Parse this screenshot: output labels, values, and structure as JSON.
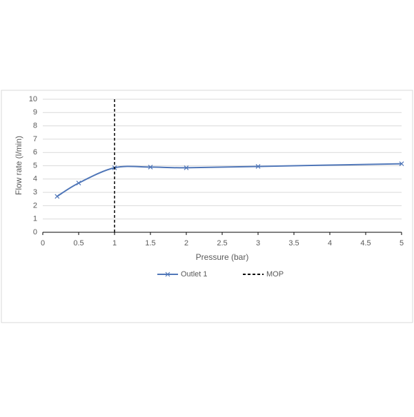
{
  "chart_data": {
    "type": "line",
    "x_label": "Pressure (bar)",
    "y_label": "Flow rate (l/min)",
    "series": [
      {
        "name": "Outlet 1",
        "color": "#4f76b8",
        "x": [
          0.2,
          0.5,
          1,
          1.5,
          2,
          3,
          5
        ],
        "values": [
          2.7,
          3.7,
          4.85,
          4.9,
          4.85,
          4.95,
          5.15
        ],
        "marker": "x",
        "smooth": true
      },
      {
        "name": "MOP",
        "color": "#000000",
        "x": [
          1,
          1
        ],
        "values": [
          0,
          10
        ],
        "dashed": true
      }
    ],
    "xlim": [
      0,
      5
    ],
    "xticks": [
      0,
      0.5,
      1,
      1.5,
      2,
      2.5,
      3,
      3.5,
      4,
      4.5,
      5
    ],
    "ylim": [
      0,
      10
    ],
    "yticks": [
      0,
      1,
      2,
      3,
      4,
      5,
      6,
      7,
      8,
      9,
      10
    ],
    "grid": true,
    "legend": "bottom"
  }
}
